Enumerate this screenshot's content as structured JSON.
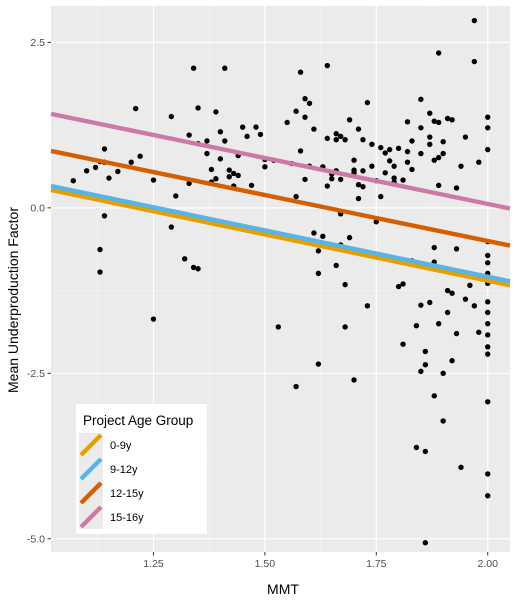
{
  "chart_data": {
    "type": "scatter",
    "xlabel": "MMT",
    "ylabel": "Mean Underproduction Factor",
    "xlim": [
      1.02,
      2.05
    ],
    "ylim": [
      -5.2,
      3.05
    ],
    "x_ticks": [
      1.25,
      1.5,
      1.75,
      2.0
    ],
    "x_tick_labels": [
      "1.25",
      "1.50",
      "1.75",
      "2.00"
    ],
    "y_ticks": [
      2.5,
      0.0,
      -2.5,
      -5.0
    ],
    "y_tick_labels": [
      "2.5",
      "0.0",
      "-2.5",
      "-5.0"
    ],
    "grid": true,
    "legend": {
      "title": "Project Age Group",
      "position": "bottom-left",
      "entries": [
        "0-9y",
        "9-12y",
        "12-15y",
        "15-16y"
      ]
    },
    "lines": [
      {
        "name": "0-9y",
        "color": "#E69F00",
        "x": [
          1.02,
          2.05
        ],
        "y": [
          0.27,
          -1.17
        ]
      },
      {
        "name": "9-12y",
        "color": "#56B4E9",
        "x": [
          1.02,
          2.05
        ],
        "y": [
          0.33,
          -1.11
        ]
      },
      {
        "name": "12-15y",
        "color": "#D55E00",
        "x": [
          1.02,
          2.05
        ],
        "y": [
          0.86,
          -0.57
        ]
      },
      {
        "name": "15-16y",
        "color": "#CC79A7",
        "x": [
          1.02,
          2.05
        ],
        "y": [
          1.42,
          -0.01
        ]
      }
    ],
    "points": [
      [
        1.07,
        0.41
      ],
      [
        1.1,
        0.56
      ],
      [
        1.12,
        0.61
      ],
      [
        1.13,
        0.7
      ],
      [
        1.14,
        0.89
      ],
      [
        1.14,
        0.69
      ],
      [
        1.15,
        0.45
      ],
      [
        1.17,
        0.55
      ],
      [
        1.13,
        -0.63
      ],
      [
        1.14,
        -0.12
      ],
      [
        1.13,
        -0.97
      ],
      [
        1.2,
        0.69
      ],
      [
        1.21,
        1.5
      ],
      [
        1.22,
        0.78
      ],
      [
        1.25,
        0.42
      ],
      [
        1.25,
        -1.68
      ],
      [
        1.29,
        1.38
      ],
      [
        1.29,
        -0.29
      ],
      [
        1.3,
        0.18
      ],
      [
        1.32,
        -0.77
      ],
      [
        1.33,
        0.37
      ],
      [
        1.33,
        1.1
      ],
      [
        1.34,
        2.11
      ],
      [
        1.35,
        1.51
      ],
      [
        1.34,
        -0.9
      ],
      [
        1.35,
        -0.92
      ],
      [
        1.35,
        0.97
      ],
      [
        1.37,
        0.82
      ],
      [
        1.37,
        1.01
      ],
      [
        1.38,
        0.39
      ],
      [
        1.38,
        0.58
      ],
      [
        1.39,
        0.44
      ],
      [
        1.39,
        1.45
      ],
      [
        1.4,
        1.15
      ],
      [
        1.4,
        0.74
      ],
      [
        1.41,
        2.11
      ],
      [
        1.41,
        1.01
      ],
      [
        1.42,
        0.57
      ],
      [
        1.42,
        0.47
      ],
      [
        1.43,
        0.52
      ],
      [
        1.43,
        0.33
      ],
      [
        1.44,
        0.79
      ],
      [
        1.44,
        0.49
      ],
      [
        1.45,
        1.22
      ],
      [
        1.46,
        1.08
      ],
      [
        1.47,
        0.34
      ],
      [
        1.48,
        1.22
      ],
      [
        1.49,
        1.11
      ],
      [
        1.5,
        0.62
      ],
      [
        1.5,
        0.73
      ],
      [
        1.52,
        0.72
      ],
      [
        1.53,
        -1.8
      ],
      [
        1.55,
        1.29
      ],
      [
        1.56,
        0.67
      ],
      [
        1.57,
        1.46
      ],
      [
        1.57,
        0.17
      ],
      [
        1.57,
        -2.7
      ],
      [
        1.58,
        2.05
      ],
      [
        1.58,
        0.86
      ],
      [
        1.59,
        1.37
      ],
      [
        1.59,
        0.43
      ],
      [
        1.59,
        1.65
      ],
      [
        1.6,
        1.58
      ],
      [
        1.6,
        0.63
      ],
      [
        1.61,
        -0.38
      ],
      [
        1.61,
        1.19
      ],
      [
        1.62,
        -2.36
      ],
      [
        1.62,
        -0.65
      ],
      [
        1.62,
        -0.99
      ],
      [
        1.63,
        -0.43
      ],
      [
        1.63,
        0.62
      ],
      [
        1.64,
        2.15
      ],
      [
        1.64,
        1.05
      ],
      [
        1.64,
        0.33
      ],
      [
        1.65,
        0.51
      ],
      [
        1.65,
        0.44
      ],
      [
        1.66,
        1.03
      ],
      [
        1.66,
        1.12
      ],
      [
        1.66,
        0.56
      ],
      [
        1.66,
        -0.87
      ],
      [
        1.67,
        1.08
      ],
      [
        1.67,
        0.43
      ],
      [
        1.67,
        -0.56
      ],
      [
        1.67,
        -0.09
      ],
      [
        1.68,
        -1.16
      ],
      [
        1.68,
        1.03
      ],
      [
        1.68,
        -1.8
      ],
      [
        1.69,
        1.33
      ],
      [
        1.69,
        -0.45
      ],
      [
        1.7,
        0.57
      ],
      [
        1.7,
        0.53
      ],
      [
        1.7,
        0.72
      ],
      [
        1.7,
        -2.6
      ],
      [
        1.71,
        1.19
      ],
      [
        1.71,
        0.14
      ],
      [
        1.71,
        0.35
      ],
      [
        1.72,
        0.56
      ],
      [
        1.72,
        0.32
      ],
      [
        1.72,
        1.03
      ],
      [
        1.73,
        1.59
      ],
      [
        1.73,
        -1.48
      ],
      [
        1.74,
        0.96
      ],
      [
        1.74,
        0.63
      ],
      [
        1.75,
        0.41
      ],
      [
        1.75,
        -0.21
      ],
      [
        1.76,
        0.91
      ],
      [
        1.76,
        0.17
      ],
      [
        1.77,
        0.83
      ],
      [
        1.77,
        0.53
      ],
      [
        1.78,
        0.88
      ],
      [
        1.78,
        0.71
      ],
      [
        1.79,
        0.45
      ],
      [
        1.79,
        0.39
      ],
      [
        1.79,
        0.63
      ],
      [
        1.8,
        0.9
      ],
      [
        1.8,
        -0.8
      ],
      [
        1.8,
        -1.19
      ],
      [
        1.81,
        -2.06
      ],
      [
        1.81,
        -1.15
      ],
      [
        1.81,
        0.42
      ],
      [
        1.82,
        0.85
      ],
      [
        1.82,
        0.69
      ],
      [
        1.82,
        1.3
      ],
      [
        1.83,
        -0.8
      ],
      [
        1.83,
        1.01
      ],
      [
        1.83,
        0.58
      ],
      [
        1.84,
        -3.62
      ],
      [
        1.84,
        -1.78
      ],
      [
        1.85,
        1.21
      ],
      [
        1.85,
        1.64
      ],
      [
        1.85,
        0.82
      ],
      [
        1.85,
        -2.47
      ],
      [
        1.85,
        -1.47
      ],
      [
        1.86,
        -3.68
      ],
      [
        1.86,
        -5.06
      ],
      [
        1.86,
        -2.37
      ],
      [
        1.86,
        -2.17
      ],
      [
        1.87,
        1.43
      ],
      [
        1.87,
        0.96
      ],
      [
        1.87,
        1.07
      ],
      [
        1.87,
        -1.43
      ],
      [
        1.88,
        1.31
      ],
      [
        1.88,
        -0.82
      ],
      [
        1.88,
        -0.6
      ],
      [
        1.88,
        0.72
      ],
      [
        1.88,
        -2.84
      ],
      [
        1.89,
        2.34
      ],
      [
        1.89,
        1.29
      ],
      [
        1.89,
        0.76
      ],
      [
        1.89,
        0.34
      ],
      [
        1.89,
        -1.75
      ],
      [
        1.9,
        0.82
      ],
      [
        1.9,
        1.0
      ],
      [
        1.9,
        -3.22
      ],
      [
        1.9,
        -2.5
      ],
      [
        1.91,
        -1.25
      ],
      [
        1.91,
        -1.58
      ],
      [
        1.91,
        1.35
      ],
      [
        1.92,
        1.33
      ],
      [
        1.92,
        -2.31
      ],
      [
        1.92,
        -1.29
      ],
      [
        1.93,
        0.3
      ],
      [
        1.93,
        -0.62
      ],
      [
        1.93,
        -1.9
      ],
      [
        1.94,
        -3.92
      ],
      [
        1.94,
        0.63
      ],
      [
        1.95,
        1.07
      ],
      [
        1.95,
        -1.38
      ],
      [
        1.96,
        -1.17
      ],
      [
        1.97,
        2.83
      ],
      [
        1.97,
        2.21
      ],
      [
        1.97,
        -1.48
      ],
      [
        1.98,
        0.69
      ],
      [
        1.98,
        -1.88
      ],
      [
        2.0,
        1.37
      ],
      [
        2.0,
        1.21
      ],
      [
        2.0,
        0.88
      ],
      [
        2.0,
        -0.51
      ],
      [
        2.0,
        -0.72
      ],
      [
        2.0,
        -0.83
      ],
      [
        2.0,
        -0.99
      ],
      [
        2.0,
        -1.14
      ],
      [
        2.0,
        -1.42
      ],
      [
        2.0,
        -1.58
      ],
      [
        2.0,
        -1.75
      ],
      [
        2.0,
        -1.92
      ],
      [
        2.0,
        -2.1
      ],
      [
        2.0,
        -2.21
      ],
      [
        2.0,
        -2.93
      ],
      [
        2.0,
        -4.02
      ],
      [
        2.0,
        -4.35
      ]
    ]
  }
}
